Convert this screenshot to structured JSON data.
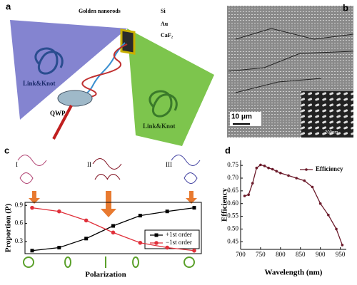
{
  "panel_a": {
    "label": "a",
    "nanorods": "Golden nanorods",
    "si": "Si",
    "au": "Au",
    "caf2": "CaF₂",
    "link_left": "Link&Knot",
    "link_right": "Link&Knot",
    "qwp": "QWP"
  },
  "panel_b": {
    "label": "b",
    "scale": "10 μm",
    "inset_scale": "200nm"
  },
  "chart_data": [
    {
      "type": "line",
      "panel": "c",
      "annotations": [
        "I",
        "II",
        "III"
      ],
      "categories": [
        null,
        null,
        null,
        null,
        null,
        null,
        null
      ],
      "series": [
        {
          "name": "+1st order",
          "color": "#000000",
          "marker": "square",
          "values": [
            0.15,
            0.2,
            0.35,
            0.56,
            0.73,
            0.8,
            0.86
          ]
        },
        {
          "name": "−1st order",
          "color": "#e0303a",
          "marker": "circle",
          "values": [
            0.86,
            0.8,
            0.65,
            0.45,
            0.28,
            0.2,
            0.15
          ]
        }
      ],
      "ylabel": "Proportion (P)",
      "xlabel": "Polarization",
      "ylim": [
        0.1,
        0.95
      ],
      "yticks": [
        0.3,
        0.6,
        0.9
      ],
      "legend": "lower right"
    },
    {
      "type": "line",
      "panel": "d",
      "x": [
        710,
        720,
        730,
        740,
        750,
        760,
        770,
        780,
        790,
        800,
        820,
        840,
        860,
        880,
        900,
        920,
        940,
        955
      ],
      "series": [
        {
          "name": "Efficiency",
          "color": "#6b1a2a",
          "marker": "circle",
          "values": [
            0.63,
            0.635,
            0.68,
            0.74,
            0.752,
            0.748,
            0.74,
            0.735,
            0.727,
            0.72,
            0.71,
            0.7,
            0.69,
            0.665,
            0.6,
            0.555,
            0.5,
            0.437
          ]
        }
      ],
      "ylabel": "Efficiency",
      "xlabel": "Wavelength (nm)",
      "xlim": [
        700,
        965
      ],
      "xticks": [
        700,
        750,
        800,
        850,
        900,
        950
      ],
      "ylim": [
        0.42,
        0.77
      ],
      "yticks": [
        0.45,
        {
          "value": 0.5,
          "label": "0.50"
        },
        0.55,
        {
          "value": 0.6,
          "label": "0.60"
        },
        0.65,
        {
          "value": 0.7,
          "label": "0.70"
        },
        0.75
      ],
      "legend": "upper right"
    }
  ]
}
